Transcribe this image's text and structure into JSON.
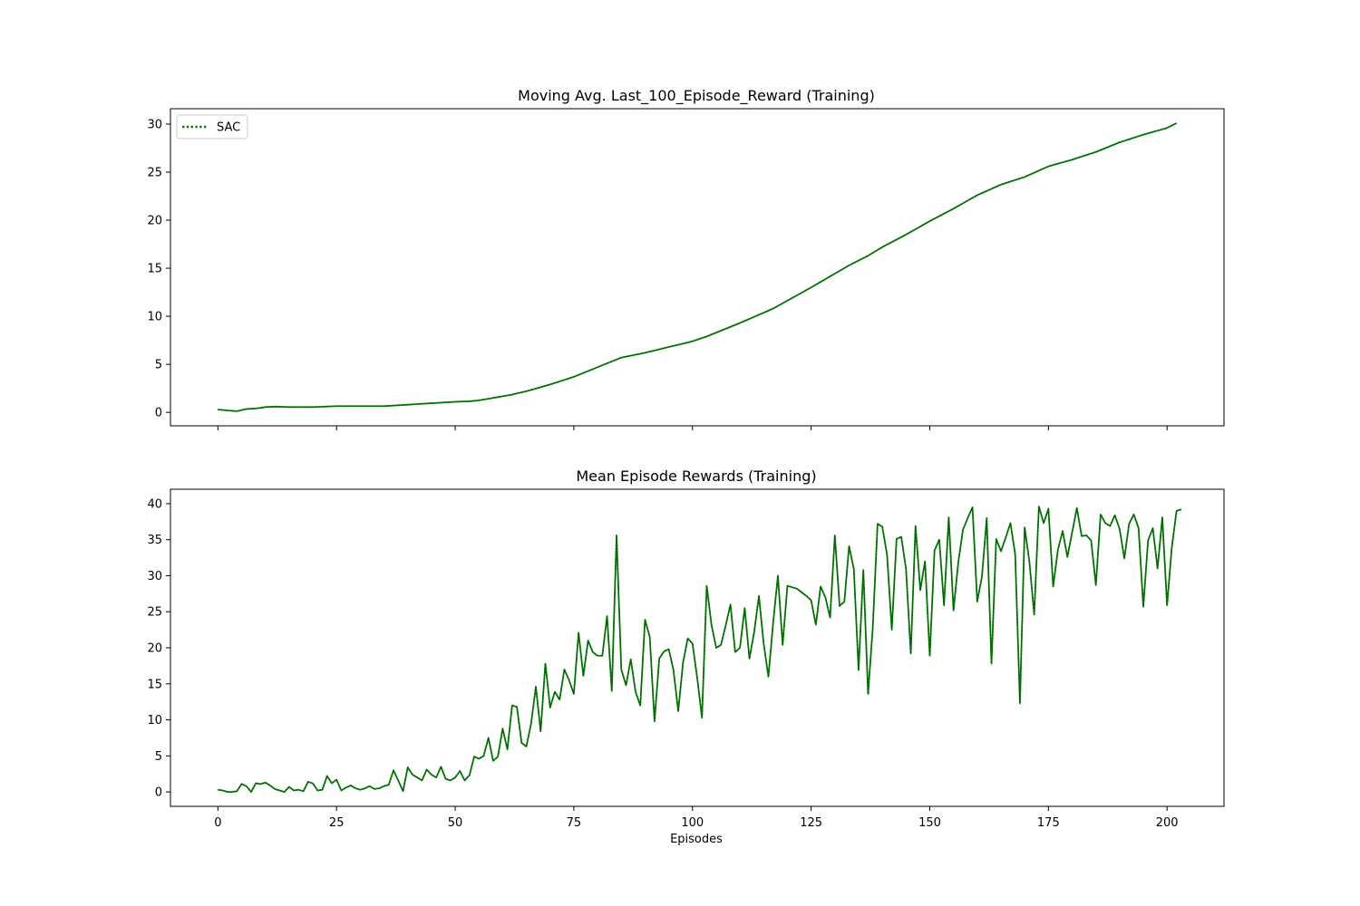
{
  "colors": {
    "series": "#008000",
    "frame": "#000000",
    "background": "#ffffff",
    "legend_border": "#cccccc"
  },
  "chart_data": [
    {
      "type": "line",
      "title": "Moving Avg. Last_100_Episode_Reward (Training)",
      "xlabel": "",
      "ylabel": "",
      "xlim": [
        -10,
        212
      ],
      "ylim": [
        -1.4,
        31.6
      ],
      "xticks": [
        0,
        25,
        50,
        75,
        100,
        125,
        150,
        175,
        200
      ],
      "show_xtick_labels": false,
      "yticks": [
        0,
        5,
        10,
        15,
        20,
        25,
        30
      ],
      "grid": false,
      "legend": {
        "location": "top-left",
        "entries": [
          "SAC"
        ]
      },
      "series": [
        {
          "name": "SAC",
          "line_style": "dotted",
          "keypoints": [
            [
              0,
              0.3
            ],
            [
              2,
              0.2
            ],
            [
              4,
              0.12
            ],
            [
              6,
              0.35
            ],
            [
              8,
              0.4
            ],
            [
              10,
              0.55
            ],
            [
              12,
              0.6
            ],
            [
              15,
              0.55
            ],
            [
              20,
              0.55
            ],
            [
              25,
              0.65
            ],
            [
              30,
              0.65
            ],
            [
              35,
              0.65
            ],
            [
              40,
              0.8
            ],
            [
              45,
              0.95
            ],
            [
              50,
              1.1
            ],
            [
              53,
              1.15
            ],
            [
              55,
              1.25
            ],
            [
              58,
              1.5
            ],
            [
              62,
              1.85
            ],
            [
              65,
              2.2
            ],
            [
              70,
              2.9
            ],
            [
              75,
              3.7
            ],
            [
              80,
              4.7
            ],
            [
              83,
              5.3
            ],
            [
              85,
              5.7
            ],
            [
              90,
              6.2
            ],
            [
              95,
              6.8
            ],
            [
              100,
              7.4
            ],
            [
              103,
              7.9
            ],
            [
              110,
              9.3
            ],
            [
              117,
              10.8
            ],
            [
              125,
              13.0
            ],
            [
              133,
              15.3
            ],
            [
              137,
              16.3
            ],
            [
              140,
              17.2
            ],
            [
              145,
              18.5
            ],
            [
              150,
              19.9
            ],
            [
              155,
              21.2
            ],
            [
              160,
              22.6
            ],
            [
              165,
              23.7
            ],
            [
              170,
              24.5
            ],
            [
              175,
              25.6
            ],
            [
              180,
              26.3
            ],
            [
              185,
              27.1
            ],
            [
              190,
              28.1
            ],
            [
              195,
              28.9
            ],
            [
              200,
              29.6
            ],
            [
              202,
              30.1
            ]
          ]
        }
      ]
    },
    {
      "type": "line",
      "title": "Mean Episode Rewards (Training)",
      "xlabel": "Episodes",
      "ylabel": "",
      "xlim": [
        -10,
        212
      ],
      "ylim": [
        -2,
        42
      ],
      "xticks": [
        0,
        25,
        50,
        75,
        100,
        125,
        150,
        175,
        200
      ],
      "show_xtick_labels": true,
      "yticks": [
        0,
        5,
        10,
        15,
        20,
        25,
        30,
        35,
        40
      ],
      "grid": false,
      "series": [
        {
          "line_style": "dotted",
          "values": [
            0.3,
            0.2,
            0.0,
            0.0,
            0.1,
            1.1,
            0.8,
            0.0,
            1.2,
            1.1,
            1.3,
            0.9,
            0.4,
            0.2,
            0.0,
            0.7,
            0.2,
            0.3,
            0.1,
            1.4,
            1.2,
            0.2,
            0.3,
            2.2,
            1.2,
            1.7,
            0.2,
            0.6,
            0.9,
            0.5,
            0.3,
            0.5,
            0.8,
            0.4,
            0.5,
            0.8,
            1.0,
            3.0,
            1.6,
            0.1,
            3.4,
            2.4,
            2.0,
            1.6,
            3.1,
            2.4,
            2.0,
            3.5,
            1.8,
            1.6,
            2.0,
            2.9,
            1.6,
            2.3,
            4.9,
            4.6,
            5.0,
            7.5,
            4.3,
            4.9,
            8.8,
            5.9,
            12.0,
            11.8,
            6.8,
            6.3,
            9.5,
            14.6,
            8.4,
            17.8,
            11.7,
            13.9,
            12.8,
            17.0,
            15.5,
            13.6,
            22.1,
            16.1,
            21.0,
            19.4,
            18.9,
            18.9,
            24.4,
            14.0,
            35.6,
            17.0,
            14.8,
            18.4,
            13.9,
            12.0,
            23.9,
            21.5,
            9.8,
            18.5,
            19.5,
            19.8,
            16.9,
            11.2,
            17.9,
            21.3,
            20.6,
            15.8,
            10.3,
            28.6,
            23.2,
            20.0,
            20.4,
            23.1,
            26.0,
            19.4,
            20.0,
            25.5,
            18.5,
            22.2,
            27.2,
            20.6,
            16.0,
            23.5,
            30.0,
            20.4,
            28.6,
            28.4,
            28.2,
            27.7,
            27.2,
            26.6,
            23.2,
            28.5,
            27.0,
            24.2,
            35.6,
            25.8,
            26.4,
            34.1,
            30.9,
            16.9,
            30.8,
            13.6,
            22.9,
            37.2,
            36.8,
            32.9,
            22.5,
            35.1,
            35.4,
            30.9,
            19.2,
            36.9,
            28.0,
            32.0,
            18.9,
            33.5,
            35.0,
            25.9,
            38.1,
            25.2,
            31.8,
            36.4,
            38.0,
            39.5,
            26.4,
            29.9,
            38.0,
            17.8,
            35.1,
            33.4,
            35.3,
            37.3,
            33.0,
            12.3,
            36.7,
            31.9,
            24.6,
            39.6,
            37.3,
            39.3,
            28.5,
            33.6,
            36.2,
            32.6,
            36.0,
            39.4,
            35.5,
            35.6,
            34.9,
            28.7,
            38.5,
            37.3,
            36.9,
            38.4,
            36.5,
            32.4,
            37.2,
            38.5,
            36.6,
            25.7,
            34.9,
            36.6,
            31.0,
            38.1,
            25.9,
            33.9,
            39.0,
            39.2
          ]
        }
      ]
    }
  ]
}
